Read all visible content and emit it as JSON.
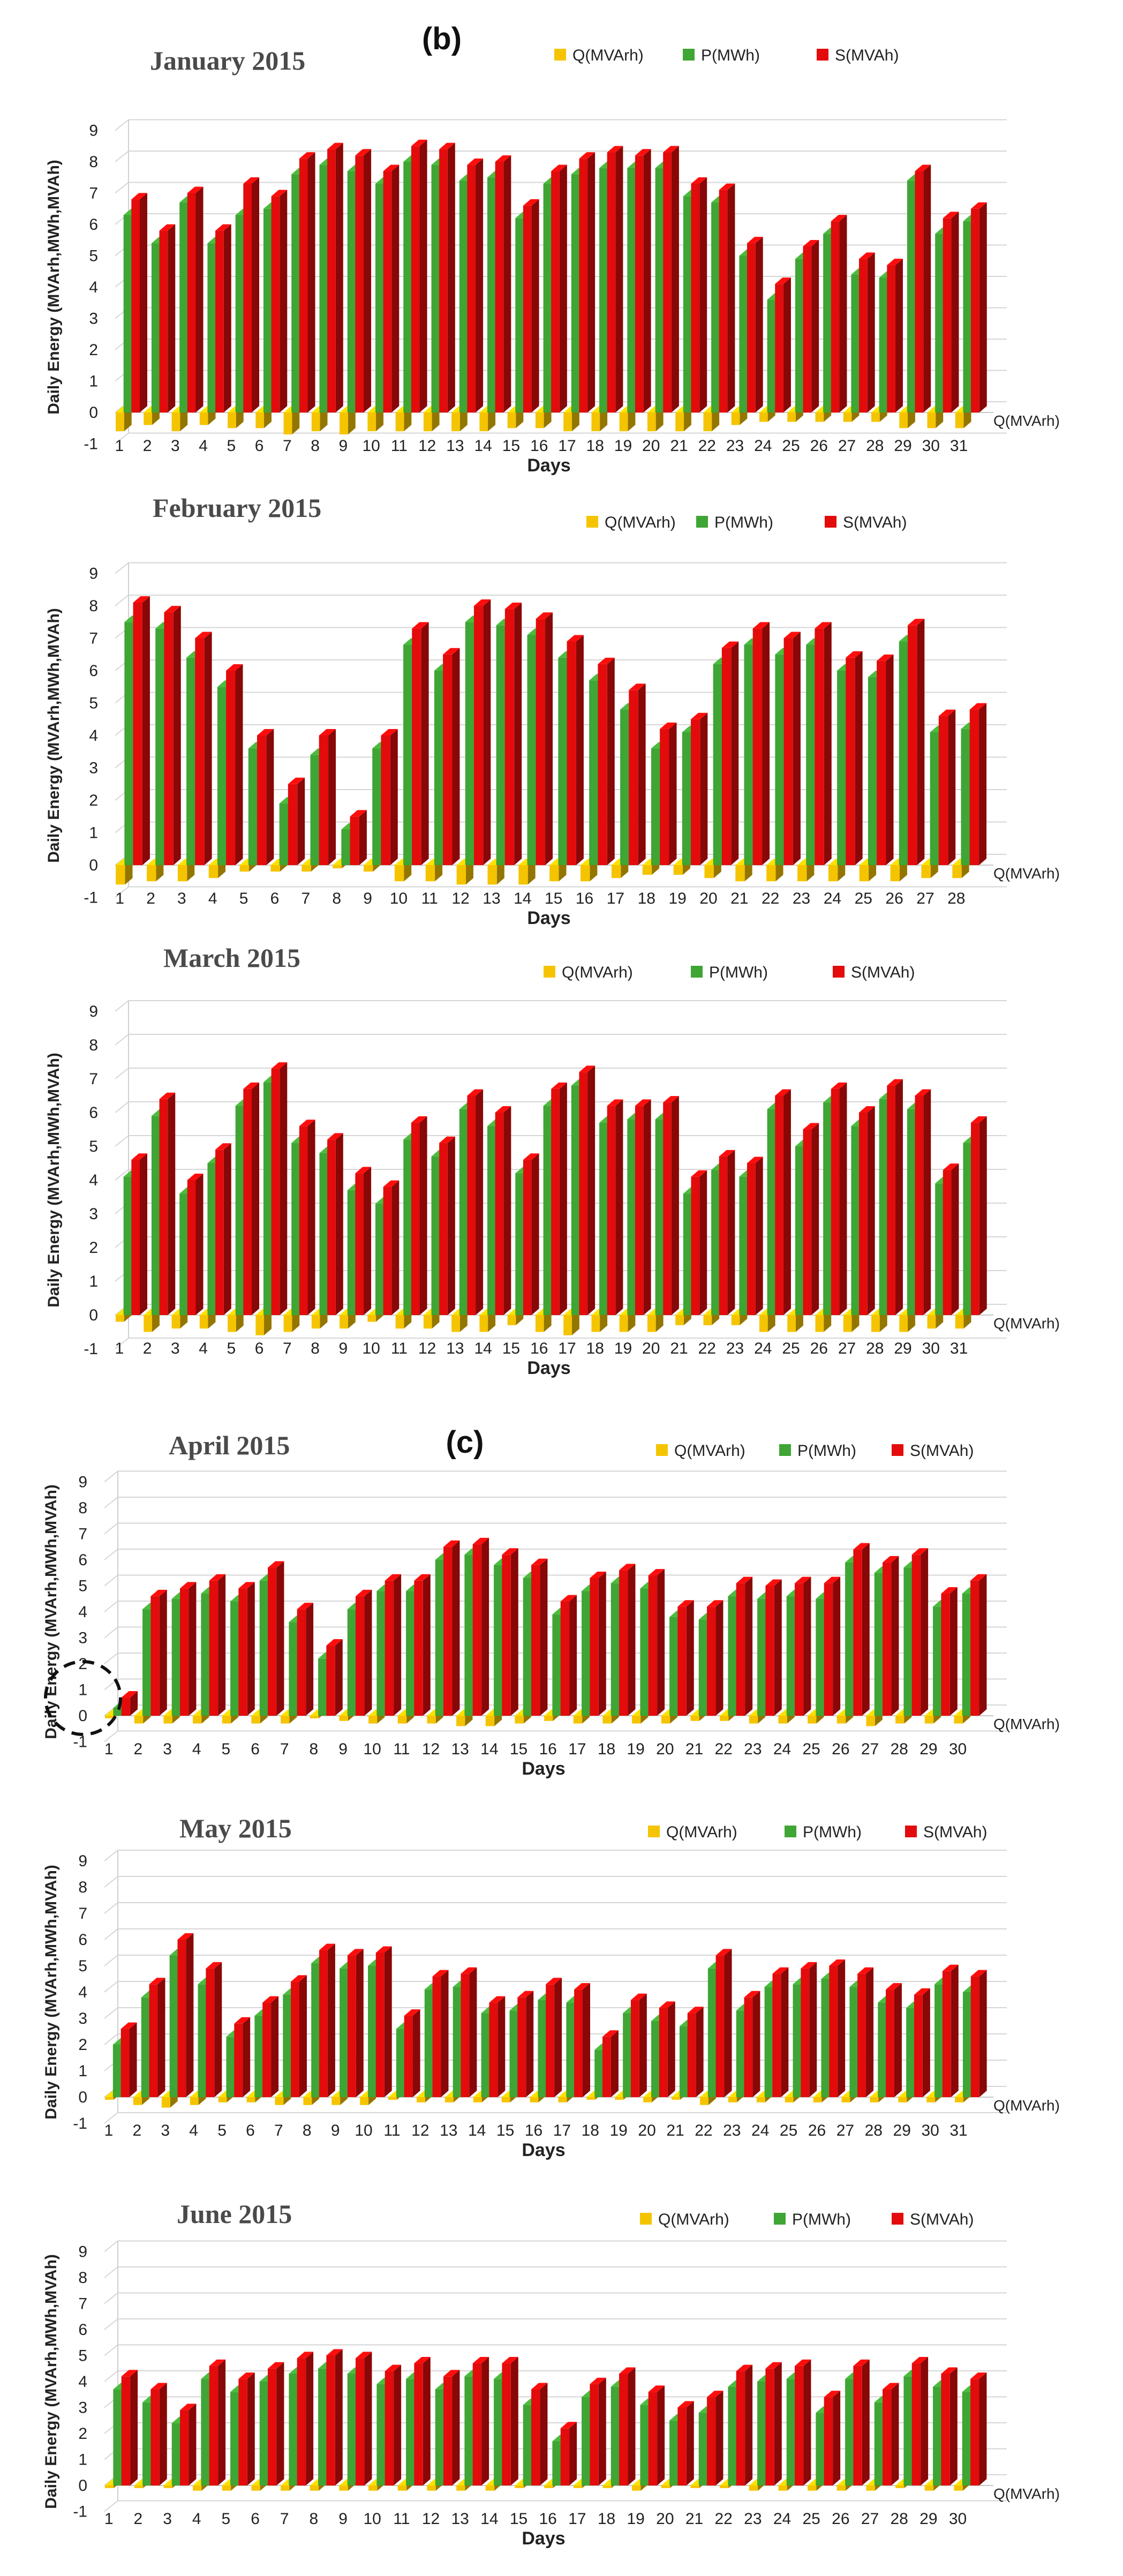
{
  "section_tags": [
    "(b)",
    "(c)"
  ],
  "colors": {
    "Q": "#F5C400",
    "P": "#3FA535",
    "S": "#E30B0B"
  },
  "chart_data": [
    {
      "type": "bar",
      "title": "January 2015",
      "xlabel": "Days",
      "ylabel": "Daily Energy (MVArh,MWh,MVAh)",
      "ylim": [
        -1,
        9
      ],
      "yticks": [
        "-1",
        "0",
        "1",
        "2",
        "3",
        "4",
        "5",
        "6",
        "7",
        "8",
        "9"
      ],
      "depth_axis_label": "Q(MVArh)",
      "legend": [
        "Q(MVArh)",
        "P(MWh)",
        "S(MVAh)"
      ],
      "categories": [
        "1",
        "2",
        "3",
        "4",
        "5",
        "6",
        "7",
        "8",
        "9",
        "10",
        "11",
        "12",
        "13",
        "14",
        "15",
        "16",
        "17",
        "18",
        "19",
        "20",
        "21",
        "22",
        "23",
        "24",
        "25",
        "26",
        "27",
        "28",
        "29",
        "30",
        "31"
      ],
      "series": [
        {
          "name": "Q(MVArh)",
          "values": [
            -0.6,
            -0.4,
            -0.6,
            -0.4,
            -0.5,
            -0.5,
            -0.7,
            -0.6,
            -0.7,
            -0.6,
            -0.6,
            -0.6,
            -0.6,
            -0.6,
            -0.5,
            -0.5,
            -0.6,
            -0.6,
            -0.6,
            -0.6,
            -0.6,
            -0.6,
            -0.4,
            -0.3,
            -0.3,
            -0.3,
            -0.3,
            -0.3,
            -0.5,
            -0.5,
            -0.5
          ]
        },
        {
          "name": "P(MWh)",
          "values": [
            6.3,
            5.4,
            6.7,
            5.4,
            6.3,
            6.5,
            7.6,
            7.9,
            7.7,
            7.3,
            8.0,
            7.9,
            7.4,
            7.5,
            6.2,
            7.3,
            7.6,
            7.8,
            7.8,
            7.8,
            6.9,
            6.7,
            5.0,
            3.6,
            4.9,
            5.7,
            4.4,
            4.3,
            7.4,
            5.7,
            6.1
          ]
        },
        {
          "name": "S(MVAh)",
          "values": [
            6.8,
            5.8,
            7.0,
            5.8,
            7.3,
            6.9,
            8.1,
            8.4,
            8.2,
            7.7,
            8.5,
            8.4,
            7.9,
            8.0,
            6.6,
            7.7,
            8.1,
            8.3,
            8.2,
            8.3,
            7.3,
            7.1,
            5.4,
            4.1,
            5.3,
            6.1,
            4.9,
            4.7,
            7.7,
            6.2,
            6.5
          ]
        }
      ]
    },
    {
      "type": "bar",
      "title": "February 2015",
      "xlabel": "Days",
      "ylabel": "Daily Energy (MVArh,MWh,MVAh)",
      "ylim": [
        -1,
        9
      ],
      "yticks": [
        "-1",
        "0",
        "1",
        "2",
        "3",
        "4",
        "5",
        "6",
        "7",
        "8",
        "9"
      ],
      "depth_axis_label": "Q(MVArh)",
      "legend": [
        "Q(MVArh)",
        "P(MWh)",
        "S(MVAh)"
      ],
      "categories": [
        "1",
        "2",
        "3",
        "4",
        "5",
        "6",
        "7",
        "8",
        "9",
        "10",
        "11",
        "12",
        "13",
        "14",
        "15",
        "16",
        "17",
        "18",
        "19",
        "20",
        "21",
        "22",
        "23",
        "24",
        "25",
        "26",
        "27",
        "28"
      ],
      "series": [
        {
          "name": "Q(MVArh)",
          "values": [
            -0.6,
            -0.5,
            -0.5,
            -0.4,
            -0.2,
            -0.2,
            -0.2,
            -0.1,
            -0.2,
            -0.5,
            -0.5,
            -0.6,
            -0.6,
            -0.6,
            -0.5,
            -0.5,
            -0.4,
            -0.3,
            -0.3,
            -0.4,
            -0.5,
            -0.5,
            -0.5,
            -0.5,
            -0.5,
            -0.5,
            -0.4,
            -0.4
          ]
        },
        {
          "name": "P(MWh)",
          "values": [
            7.5,
            7.3,
            6.4,
            5.5,
            3.6,
            1.9,
            3.4,
            1.1,
            3.6,
            6.8,
            6.0,
            7.5,
            7.4,
            7.1,
            6.4,
            5.7,
            4.8,
            3.6,
            4.1,
            6.2,
            6.8,
            6.5,
            6.8,
            6.0,
            5.8,
            6.9,
            4.1,
            4.2
          ]
        },
        {
          "name": "S(MVAh)",
          "values": [
            8.1,
            7.8,
            7.0,
            6.0,
            4.0,
            2.5,
            4.0,
            1.5,
            4.0,
            7.3,
            6.5,
            8.0,
            7.9,
            7.6,
            6.9,
            6.2,
            5.4,
            4.2,
            4.5,
            6.7,
            7.3,
            7.0,
            7.3,
            6.4,
            6.3,
            7.4,
            4.6,
            4.8
          ]
        }
      ]
    },
    {
      "type": "bar",
      "title": "March 2015",
      "xlabel": "Days",
      "ylabel": "Daily Energy (MVArh,MWh,MVAh)",
      "ylim": [
        -1,
        9
      ],
      "yticks": [
        "-1",
        "0",
        "1",
        "2",
        "3",
        "4",
        "5",
        "6",
        "7",
        "8",
        "9"
      ],
      "depth_axis_label": "Q(MVArh)",
      "legend": [
        "Q(MVArh)",
        "P(MWh)",
        "S(MVAh)"
      ],
      "categories": [
        "1",
        "2",
        "3",
        "4",
        "5",
        "6",
        "7",
        "8",
        "9",
        "10",
        "11",
        "12",
        "13",
        "14",
        "15",
        "16",
        "17",
        "18",
        "19",
        "20",
        "21",
        "22",
        "23",
        "24",
        "25",
        "26",
        "27",
        "28",
        "29",
        "30",
        "31"
      ],
      "series": [
        {
          "name": "Q(MVArh)",
          "values": [
            -0.2,
            -0.5,
            -0.4,
            -0.4,
            -0.5,
            -0.6,
            -0.5,
            -0.4,
            -0.4,
            -0.2,
            -0.4,
            -0.4,
            -0.5,
            -0.5,
            -0.3,
            -0.5,
            -0.6,
            -0.5,
            -0.5,
            -0.5,
            -0.3,
            -0.3,
            -0.3,
            -0.5,
            -0.5,
            -0.5,
            -0.5,
            -0.5,
            -0.5,
            -0.4,
            -0.4
          ]
        },
        {
          "name": "P(MWh)",
          "values": [
            4.1,
            5.9,
            3.6,
            4.5,
            6.2,
            6.9,
            5.1,
            4.8,
            3.7,
            3.3,
            5.2,
            4.7,
            6.1,
            5.6,
            4.2,
            6.2,
            6.8,
            5.7,
            5.8,
            5.8,
            3.6,
            4.3,
            4.1,
            6.1,
            5.0,
            6.3,
            5.6,
            6.4,
            6.1,
            3.9,
            5.1
          ]
        },
        {
          "name": "S(MVAh)",
          "values": [
            4.6,
            6.4,
            4.0,
            4.9,
            6.7,
            7.3,
            5.6,
            5.2,
            4.2,
            3.8,
            5.7,
            5.1,
            6.5,
            6.0,
            4.6,
            6.7,
            7.2,
            6.2,
            6.2,
            6.3,
            4.1,
            4.7,
            4.5,
            6.5,
            5.5,
            6.7,
            6.0,
            6.8,
            6.5,
            4.3,
            5.7
          ]
        }
      ]
    },
    {
      "type": "bar",
      "title": "April 2015",
      "xlabel": "Days",
      "ylabel": "Daily Energy (MVArh,MWh,MVAh)",
      "ylim": [
        -1,
        9
      ],
      "yticks": [
        "-1",
        "0",
        "1",
        "2",
        "3",
        "4",
        "5",
        "6",
        "7",
        "8",
        "9"
      ],
      "depth_axis_label": "Q(MVArh)",
      "legend": [
        "Q(MVArh)",
        "P(MWh)",
        "S(MVAh)"
      ],
      "categories": [
        "1",
        "2",
        "3",
        "4",
        "5",
        "6",
        "7",
        "8",
        "9",
        "10",
        "11",
        "12",
        "13",
        "14",
        "15",
        "16",
        "17",
        "18",
        "19",
        "20",
        "21",
        "22",
        "23",
        "24",
        "25",
        "26",
        "27",
        "28",
        "29",
        "30"
      ],
      "series": [
        {
          "name": "Q(MVArh)",
          "values": [
            -0.1,
            -0.3,
            -0.3,
            -0.3,
            -0.3,
            -0.3,
            -0.3,
            -0.1,
            -0.2,
            -0.3,
            -0.3,
            -0.3,
            -0.4,
            -0.4,
            -0.3,
            -0.2,
            -0.3,
            -0.3,
            -0.3,
            -0.3,
            -0.2,
            -0.2,
            -0.3,
            -0.3,
            -0.3,
            -0.3,
            -0.4,
            -0.3,
            -0.3,
            -0.3
          ]
        },
        {
          "name": "P(MWh)",
          "values": [
            0.3,
            4.1,
            4.5,
            4.7,
            4.4,
            5.2,
            3.6,
            2.2,
            4.1,
            4.8,
            4.8,
            6.0,
            6.2,
            5.8,
            5.3,
            3.9,
            4.8,
            5.1,
            4.9,
            3.8,
            3.7,
            4.6,
            4.5,
            4.6,
            4.5,
            5.9,
            5.5,
            5.7,
            4.2,
            4.7
          ]
        },
        {
          "name": "S(MVAh)",
          "values": [
            0.7,
            4.6,
            4.9,
            5.2,
            4.9,
            5.7,
            4.1,
            2.7,
            4.6,
            5.2,
            5.2,
            6.5,
            6.6,
            6.2,
            5.8,
            4.4,
            5.3,
            5.6,
            5.4,
            4.2,
            4.2,
            5.1,
            5.0,
            5.1,
            5.1,
            6.4,
            5.9,
            6.2,
            4.7,
            5.2
          ]
        }
      ]
    },
    {
      "type": "bar",
      "title": "May 2015",
      "xlabel": "Days",
      "ylabel": "Daily Energy (MVArh,MWh,MVAh)",
      "ylim": [
        -1,
        9
      ],
      "yticks": [
        "-1",
        "0",
        "1",
        "2",
        "3",
        "4",
        "5",
        "6",
        "7",
        "8",
        "9"
      ],
      "depth_axis_label": "Q(MVArh)",
      "legend": [
        "Q(MVArh)",
        "P(MWh)",
        "S(MVAh)"
      ],
      "categories": [
        "1",
        "2",
        "3",
        "4",
        "5",
        "6",
        "7",
        "8",
        "9",
        "10",
        "11",
        "12",
        "13",
        "14",
        "15",
        "16",
        "17",
        "18",
        "19",
        "20",
        "21",
        "22",
        "23",
        "24",
        "25",
        "26",
        "27",
        "28",
        "29",
        "30",
        "31"
      ],
      "series": [
        {
          "name": "Q(MVArh)",
          "values": [
            -0.1,
            -0.3,
            -0.4,
            -0.3,
            -0.2,
            -0.2,
            -0.3,
            -0.3,
            -0.3,
            -0.3,
            -0.1,
            -0.2,
            -0.2,
            -0.2,
            -0.2,
            -0.2,
            -0.2,
            -0.1,
            -0.1,
            -0.2,
            -0.1,
            -0.3,
            -0.2,
            -0.2,
            -0.2,
            -0.2,
            -0.2,
            -0.2,
            -0.2,
            -0.2,
            -0.2
          ]
        },
        {
          "name": "P(MWh)",
          "values": [
            2.0,
            3.8,
            5.4,
            4.3,
            2.3,
            3.1,
            3.9,
            5.1,
            4.9,
            5.0,
            2.6,
            4.1,
            4.2,
            3.2,
            3.3,
            3.7,
            3.6,
            1.8,
            3.2,
            2.9,
            2.7,
            4.9,
            3.3,
            4.2,
            4.3,
            4.5,
            4.2,
            3.6,
            3.4,
            4.3,
            4.0
          ]
        },
        {
          "name": "S(MVAh)",
          "values": [
            2.6,
            4.3,
            6.0,
            4.9,
            2.8,
            3.6,
            4.4,
            5.6,
            5.4,
            5.5,
            3.1,
            4.6,
            4.7,
            3.6,
            3.8,
            4.3,
            4.1,
            2.3,
            3.7,
            3.4,
            3.2,
            5.4,
            3.8,
            4.7,
            4.9,
            5.0,
            4.7,
            4.1,
            3.9,
            4.8,
            4.6
          ]
        }
      ]
    },
    {
      "type": "bar",
      "title": "June 2015",
      "xlabel": "Days",
      "ylabel": "Daily Energy (MVArh,MWh,MVAh)",
      "ylim": [
        -1,
        9
      ],
      "yticks": [
        "-1",
        "0",
        "1",
        "2",
        "3",
        "4",
        "5",
        "6",
        "7",
        "8",
        "9"
      ],
      "depth_axis_label": "Q(MVArh)",
      "legend": [
        "Q(MVArh)",
        "P(MWh)",
        "S(MVAh)"
      ],
      "categories": [
        "1",
        "2",
        "3",
        "4",
        "5",
        "6",
        "7",
        "8",
        "9",
        "10",
        "11",
        "12",
        "13",
        "14",
        "15",
        "16",
        "17",
        "18",
        "19",
        "20",
        "21",
        "22",
        "23",
        "24",
        "25",
        "26",
        "27",
        "28",
        "29",
        "30"
      ],
      "series": [
        {
          "name": "Q(MVArh)",
          "values": [
            -0.1,
            -0.1,
            -0.1,
            -0.2,
            -0.2,
            -0.2,
            -0.2,
            -0.2,
            -0.2,
            -0.2,
            -0.2,
            -0.2,
            -0.2,
            -0.2,
            -0.1,
            -0.1,
            -0.1,
            -0.1,
            -0.2,
            -0.1,
            -0.1,
            -0.1,
            -0.2,
            -0.2,
            -0.2,
            -0.2,
            -0.2,
            -0.1,
            -0.2,
            -0.2
          ]
        },
        {
          "name": "P(MWh)",
          "values": [
            3.7,
            3.2,
            2.4,
            4.1,
            3.6,
            4.0,
            4.3,
            4.5,
            4.3,
            3.9,
            4.1,
            3.7,
            4.2,
            4.1,
            3.1,
            1.7,
            3.4,
            3.8,
            3.1,
            2.5,
            2.8,
            3.8,
            4.0,
            4.1,
            2.8,
            4.1,
            3.2,
            4.2,
            3.8,
            3.6
          ]
        },
        {
          "name": "S(MVAh)",
          "values": [
            4.2,
            3.7,
            2.9,
            4.6,
            4.1,
            4.5,
            4.9,
            5.0,
            4.9,
            4.4,
            4.7,
            4.2,
            4.7,
            4.7,
            3.7,
            2.2,
            3.9,
            4.3,
            3.6,
            3.0,
            3.4,
            4.4,
            4.5,
            4.6,
            3.4,
            4.6,
            3.7,
            4.7,
            4.3,
            4.1
          ]
        }
      ]
    }
  ]
}
